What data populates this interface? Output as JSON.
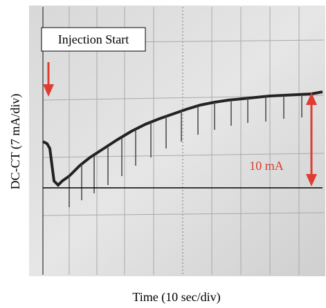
{
  "figure": {
    "annotation_box": "Injection Start",
    "current_label": "10 mA",
    "y_label": "DC-CT (7 mA/div)",
    "x_label": "Time (10 sec/div)"
  }
}
